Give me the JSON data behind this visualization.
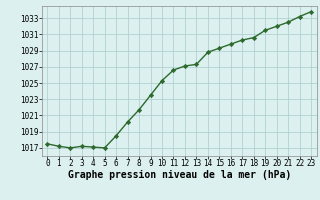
{
  "x": [
    0,
    1,
    2,
    3,
    4,
    5,
    6,
    7,
    8,
    9,
    10,
    11,
    12,
    13,
    14,
    15,
    16,
    17,
    18,
    19,
    20,
    21,
    22,
    23
  ],
  "y": [
    1017.5,
    1017.2,
    1017.0,
    1017.2,
    1017.1,
    1017.0,
    1018.5,
    1020.2,
    1021.7,
    1023.5,
    1025.3,
    1026.6,
    1027.1,
    1027.3,
    1028.8,
    1029.3,
    1029.8,
    1030.3,
    1030.6,
    1031.5,
    1032.0,
    1032.5,
    1033.2,
    1033.8
  ],
  "ylim": [
    1016.0,
    1034.5
  ],
  "yticks": [
    1017,
    1019,
    1021,
    1023,
    1025,
    1027,
    1029,
    1031,
    1033
  ],
  "xlim": [
    -0.5,
    23.5
  ],
  "xticks": [
    0,
    1,
    2,
    3,
    4,
    5,
    6,
    7,
    8,
    9,
    10,
    11,
    12,
    13,
    14,
    15,
    16,
    17,
    18,
    19,
    20,
    21,
    22,
    23
  ],
  "line_color": "#2d6a2d",
  "marker": "D",
  "marker_size": 2.2,
  "bg_color": "#ddf0f0",
  "grid_color": "#aacccc",
  "xlabel": "Graphe pression niveau de la mer (hPa)",
  "xlabel_fontsize": 7,
  "tick_fontsize": 5.5,
  "line_width": 1.0
}
